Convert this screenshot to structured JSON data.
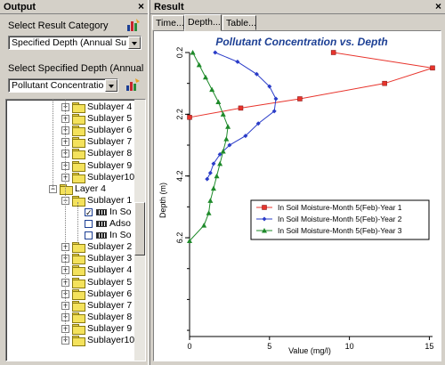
{
  "output_panel": {
    "title": "Output",
    "close": "×",
    "category_label": "Select Result Category",
    "category_value": "Specified Depth (Annual Summar",
    "depth_label": "Select Specified Depth (Annual Summar",
    "depth_value": "Pollutant Concentration"
  },
  "tree": [
    {
      "label": "Sublayer 4",
      "level": 3,
      "kind": "folder",
      "expander": "+"
    },
    {
      "label": "Sublayer 5",
      "level": 3,
      "kind": "folder",
      "expander": "+"
    },
    {
      "label": "Sublayer 6",
      "level": 3,
      "kind": "folder",
      "expander": "+"
    },
    {
      "label": "Sublayer 7",
      "level": 3,
      "kind": "folder",
      "expander": "+"
    },
    {
      "label": "Sublayer 8",
      "level": 3,
      "kind": "folder",
      "expander": "+"
    },
    {
      "label": "Sublayer 9",
      "level": 3,
      "kind": "folder",
      "expander": "+"
    },
    {
      "label": "Sublayer10",
      "level": 3,
      "kind": "folder",
      "expander": "+"
    },
    {
      "label": "Layer 4",
      "level": 2,
      "kind": "folder",
      "expander": "-"
    },
    {
      "label": "Sublayer 1",
      "level": 3,
      "kind": "folder",
      "expander": "-"
    },
    {
      "label": "In So",
      "level": 4,
      "kind": "data",
      "checked": true
    },
    {
      "label": "Adso",
      "level": 4,
      "kind": "data",
      "checked": false
    },
    {
      "label": "In So",
      "level": 4,
      "kind": "data",
      "checked": false
    },
    {
      "label": "Sublayer 2",
      "level": 3,
      "kind": "folder",
      "expander": "+"
    },
    {
      "label": "Sublayer 3",
      "level": 3,
      "kind": "folder",
      "expander": "+"
    },
    {
      "label": "Sublayer 4",
      "level": 3,
      "kind": "folder",
      "expander": "+"
    },
    {
      "label": "Sublayer 5",
      "level": 3,
      "kind": "folder",
      "expander": "+"
    },
    {
      "label": "Sublayer 6",
      "level": 3,
      "kind": "folder",
      "expander": "+"
    },
    {
      "label": "Sublayer 7",
      "level": 3,
      "kind": "folder",
      "expander": "+"
    },
    {
      "label": "Sublayer 8",
      "level": 3,
      "kind": "folder",
      "expander": "+"
    },
    {
      "label": "Sublayer 9",
      "level": 3,
      "kind": "folder",
      "expander": "+"
    },
    {
      "label": "Sublayer10",
      "level": 3,
      "kind": "folder",
      "expander": "+"
    }
  ],
  "result_panel": {
    "title": "Result",
    "close": "×",
    "tabs": [
      {
        "label": "Time...",
        "active": false
      },
      {
        "label": "Depth...",
        "active": true
      },
      {
        "label": "Table...",
        "active": false
      }
    ]
  },
  "chart_data": {
    "type": "line",
    "title": "Pollutant Concentration vs. Depth",
    "xlabel": "Value (mg/l)",
    "ylabel": "Depth (m)",
    "xlim": [
      0,
      15.2
    ],
    "ylim": [
      0.2,
      9.4
    ],
    "y_inverted": true,
    "x_ticks": [
      0,
      5,
      10,
      15
    ],
    "y_ticks": [
      0.2,
      2.2,
      4.2,
      6.2
    ],
    "grid": false,
    "legend_position": "right-middle",
    "series": [
      {
        "name": "In Soil Moisture-Month 5(Feb)-Year 1",
        "color": "#e8342c",
        "marker": "square",
        "points": [
          [
            9.0,
            0.2
          ],
          [
            15.2,
            0.7
          ],
          [
            12.2,
            1.2
          ],
          [
            6.9,
            1.7
          ],
          [
            3.2,
            2.0
          ],
          [
            0.0,
            2.3
          ]
        ]
      },
      {
        "name": "In Soil Moisture-Month 5(Feb)-Year 2",
        "color": "#2a3cc8",
        "marker": "diamond",
        "points": [
          [
            1.6,
            0.2
          ],
          [
            3.0,
            0.5
          ],
          [
            4.2,
            0.9
          ],
          [
            5.0,
            1.3
          ],
          [
            5.4,
            1.7
          ],
          [
            5.3,
            2.1
          ],
          [
            4.3,
            2.5
          ],
          [
            3.5,
            2.9
          ],
          [
            2.5,
            3.2
          ],
          [
            1.9,
            3.5
          ],
          [
            1.5,
            3.8
          ],
          [
            1.3,
            4.1
          ],
          [
            1.1,
            4.3
          ]
        ]
      },
      {
        "name": "In Soil Moisture-Month 5(Feb)-Year 3",
        "color": "#1e8a2a",
        "marker": "triangle",
        "points": [
          [
            0.2,
            0.2
          ],
          [
            0.6,
            0.6
          ],
          [
            1.0,
            1.0
          ],
          [
            1.4,
            1.4
          ],
          [
            1.8,
            1.8
          ],
          [
            2.1,
            2.2
          ],
          [
            2.4,
            2.6
          ],
          [
            2.3,
            3.0
          ],
          [
            2.1,
            3.4
          ],
          [
            1.9,
            3.8
          ],
          [
            1.7,
            4.2
          ],
          [
            1.5,
            4.6
          ],
          [
            1.3,
            5.0
          ],
          [
            1.2,
            5.4
          ],
          [
            0.9,
            5.8
          ],
          [
            0.0,
            6.3
          ]
        ]
      }
    ]
  }
}
